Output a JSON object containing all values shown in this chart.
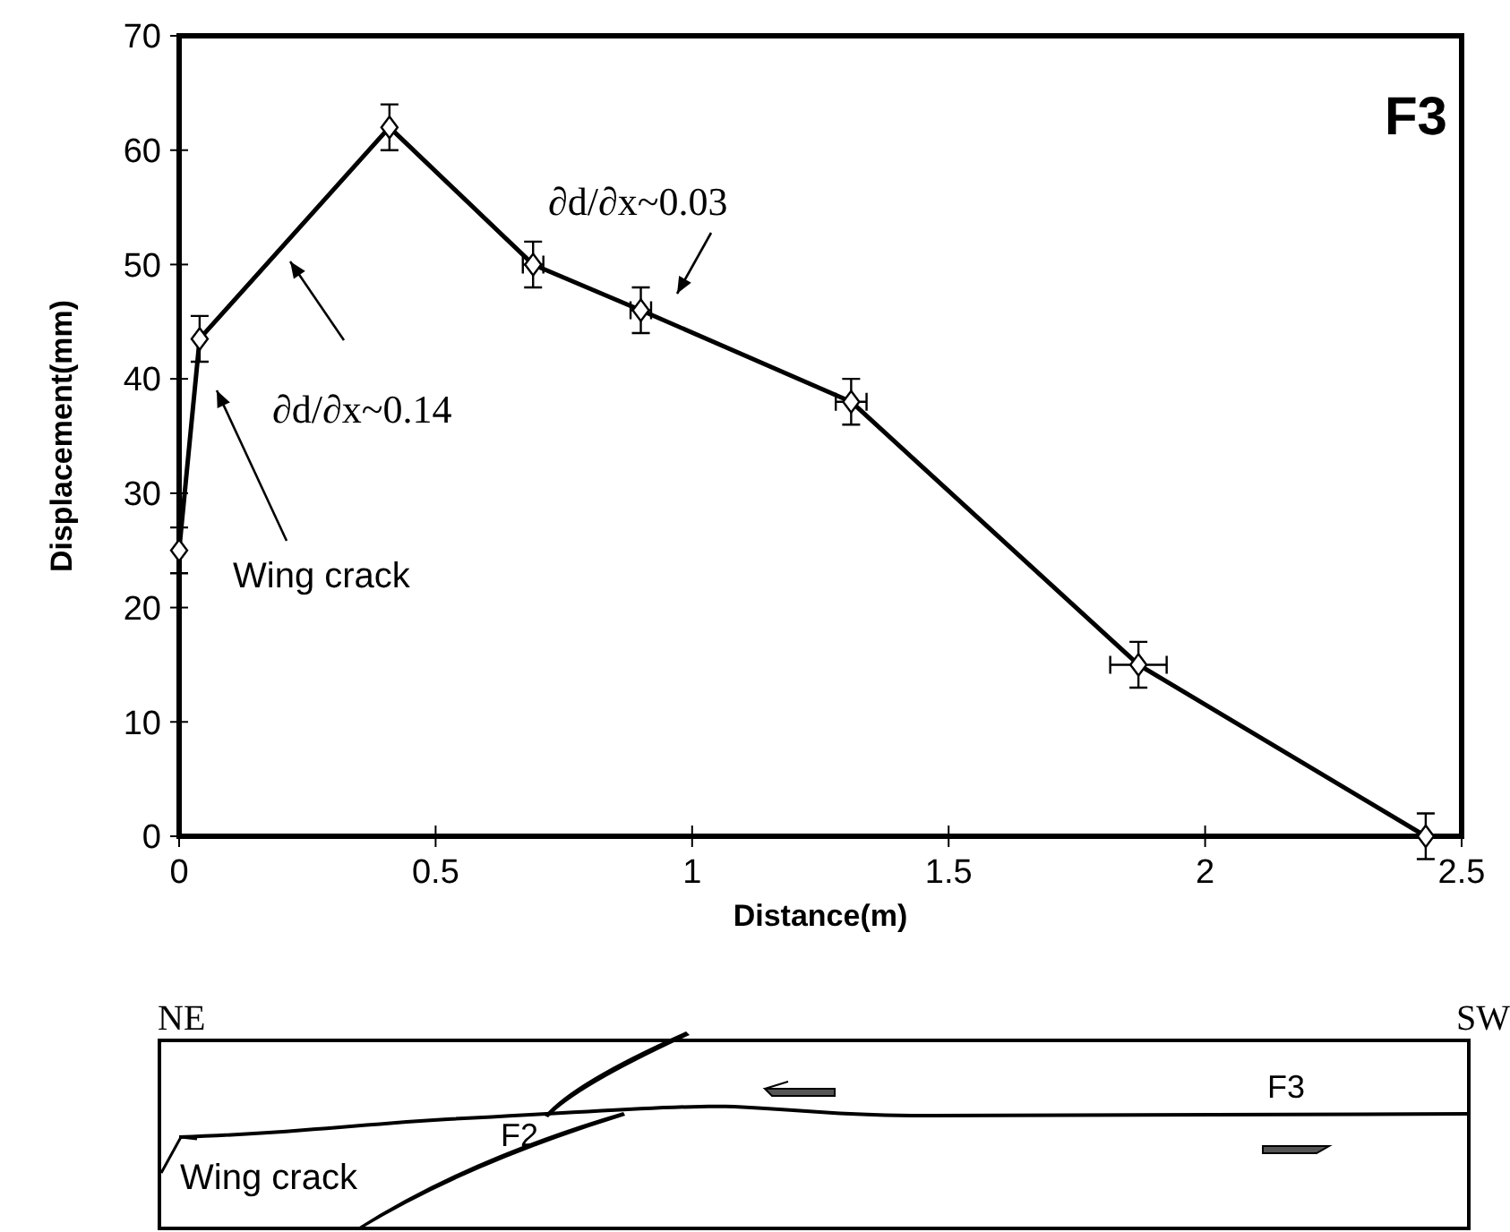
{
  "chart_data": {
    "type": "line",
    "xlabel": "Distance(m)",
    "ylabel": "Displacement(mm)",
    "x": [
      0,
      0.04,
      0.41,
      0.69,
      0.9,
      1.31,
      1.87,
      2.43
    ],
    "series": [
      {
        "color": "#000000",
        "values": [
          25,
          43.5,
          62,
          50,
          46,
          38,
          15,
          0
        ],
        "errors": [
          2,
          2,
          2,
          2,
          2,
          2,
          2,
          2
        ],
        "xerrors": [
          null,
          null,
          null,
          0.02,
          0.02,
          0.03,
          0.055,
          null
        ]
      }
    ],
    "xlim": [
      0,
      2.5
    ],
    "xticks": [
      0,
      0.5,
      1,
      1.5,
      2,
      2.5
    ],
    "ylim": [
      0,
      70
    ],
    "yticks": [
      0,
      10,
      20,
      30,
      40,
      50,
      60,
      70
    ],
    "marker": "diamond",
    "line_style": "solid",
    "grid": false,
    "annotations": [
      "∂d/∂x~0.14",
      "∂d/∂x~0.03",
      "Wing crack",
      "F3",
      "NE",
      "SW",
      "F2",
      "F3",
      "Wing crack"
    ]
  }
}
